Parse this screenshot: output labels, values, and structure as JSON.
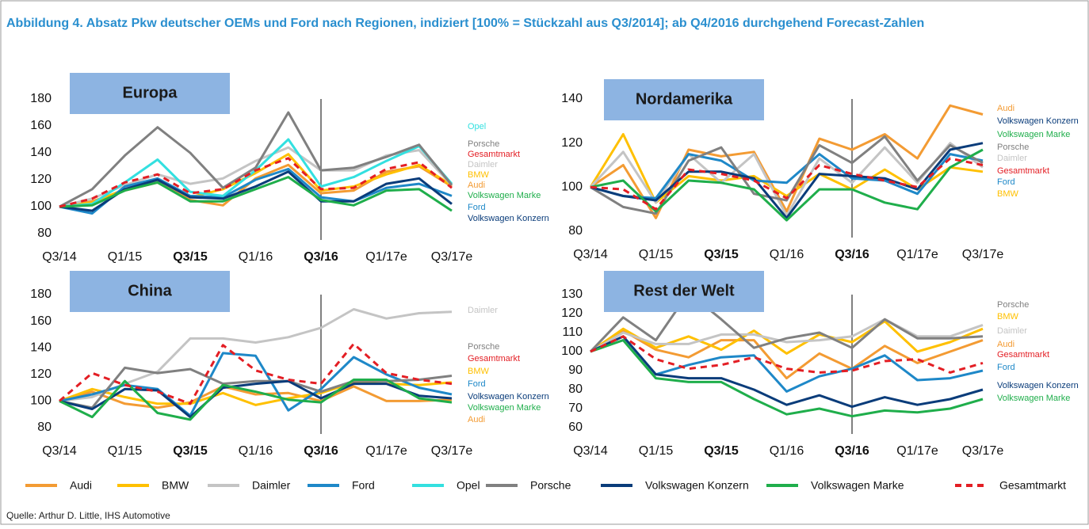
{
  "title": "Abbildung 4. Absatz Pkw deutscher OEMs und Ford nach Regionen, indiziert [100% = Stückzahl aus Q3/2014]; ab Q4/2016 durchgehend Forecast-Zahlen",
  "source": "Quelle: Arthur D. Little, IHS Automotive",
  "chart_data": [
    {
      "type": "line",
      "title": "Europa",
      "categories": [
        "Q3/14",
        null,
        "Q1/15",
        null,
        "Q3/15",
        null,
        "Q1/16",
        null,
        "Q3/16",
        null,
        "Q1/17e",
        null,
        "Q3/17e"
      ],
      "ylim": [
        80,
        180
      ],
      "yticks": [
        80,
        100,
        120,
        140,
        160,
        180
      ],
      "series": [
        {
          "name": "Audi",
          "color": "#f39b33",
          "values": [
            100,
            104,
            112,
            118,
            105,
            101,
            121,
            131,
            110,
            112,
            126,
            130,
            115
          ]
        },
        {
          "name": "BMW",
          "color": "#ffc000",
          "values": [
            100,
            103,
            113,
            120,
            107,
            113,
            125,
            139,
            112,
            115,
            124,
            131,
            116
          ]
        },
        {
          "name": "Daimler",
          "color": "#c4c4c4",
          "values": [
            100,
            106,
            116,
            124,
            117,
            121,
            134,
            144,
            127,
            127,
            138,
            142,
            116
          ]
        },
        {
          "name": "Ford",
          "color": "#1e88c8",
          "values": [
            100,
            95,
            115,
            121,
            108,
            107,
            120,
            128,
            107,
            104,
            114,
            117,
            108
          ]
        },
        {
          "name": "Opel",
          "color": "#33e0e0",
          "values": [
            100,
            102,
            118,
            135,
            111,
            108,
            127,
            150,
            115,
            122,
            134,
            145,
            117
          ]
        },
        {
          "name": "Porsche",
          "color": "#808080",
          "values": [
            100,
            113,
            138,
            159,
            140,
            114,
            129,
            170,
            127,
            129,
            137,
            146,
            116
          ]
        },
        {
          "name": "Volkswagen Konzern",
          "color": "#0a3c7a",
          "values": [
            100,
            97,
            113,
            120,
            107,
            106,
            115,
            126,
            104,
            104,
            117,
            121,
            102
          ]
        },
        {
          "name": "Volkswagen Marke",
          "color": "#1fae4b",
          "values": [
            100,
            101,
            112,
            118,
            104,
            104,
            113,
            122,
            105,
            101,
            112,
            113,
            97
          ]
        },
        {
          "name": "Gesamtmarkt",
          "color": "#e31e24",
          "dashed": true,
          "values": [
            100,
            106,
            118,
            124,
            110,
            113,
            127,
            136,
            113,
            114,
            128,
            133,
            114
          ]
        }
      ]
    },
    {
      "type": "line",
      "title": "Nordamerika",
      "categories": [
        "Q3/14",
        null,
        "Q1/15",
        null,
        "Q3/15",
        null,
        "Q1/16",
        null,
        "Q3/16",
        null,
        "Q1/17e",
        null,
        "Q3/17e"
      ],
      "ylim": [
        80,
        140
      ],
      "yticks": [
        80,
        100,
        120,
        140
      ],
      "series": [
        {
          "name": "Audi",
          "color": "#f39b33",
          "values": [
            100,
            110,
            86,
            117,
            114,
            116,
            89,
            122,
            117,
            124,
            113,
            137,
            133
          ]
        },
        {
          "name": "BMW",
          "color": "#ffc000",
          "values": [
            100,
            124,
            93,
            105,
            103,
            105,
            96,
            106,
            99,
            108,
            99,
            109,
            107
          ]
        },
        {
          "name": "Daimler",
          "color": "#c4c4c4",
          "values": [
            100,
            116,
            93,
            115,
            102,
            115,
            87,
            113,
            102,
            118,
            102,
            120,
            109
          ]
        },
        {
          "name": "Ford",
          "color": "#1e88c8",
          "values": [
            100,
            96,
            95,
            115,
            112,
            103,
            102,
            115,
            104,
            103,
            97,
            115,
            112
          ]
        },
        {
          "name": "Porsche",
          "color": "#808080",
          "values": [
            100,
            91,
            88,
            112,
            118,
            97,
            94,
            119,
            111,
            123,
            103,
            119,
            111
          ]
        },
        {
          "name": "Volkswagen Konzern",
          "color": "#0a3c7a",
          "values": [
            100,
            96,
            94,
            107,
            107,
            104,
            86,
            106,
            105,
            104,
            99,
            117,
            120
          ]
        },
        {
          "name": "Volkswagen Marke",
          "color": "#1fae4b",
          "values": [
            100,
            103,
            89,
            103,
            102,
            99,
            85,
            99,
            99,
            93,
            90,
            109,
            117
          ]
        },
        {
          "name": "Gesamtmarkt",
          "color": "#e31e24",
          "dashed": true,
          "values": [
            100,
            99,
            90,
            108,
            106,
            103,
            95,
            110,
            106,
            103,
            100,
            113,
            110
          ]
        }
      ]
    },
    {
      "type": "line",
      "title": "China",
      "categories": [
        "Q3/14",
        null,
        "Q1/15",
        null,
        "Q3/15",
        null,
        "Q1/16",
        null,
        "Q3/16",
        null,
        "Q1/17e",
        null,
        "Q3/17e"
      ],
      "ylim": [
        80,
        180
      ],
      "yticks": [
        80,
        100,
        120,
        140,
        160,
        180
      ],
      "series": [
        {
          "name": "Audi",
          "color": "#f39b33",
          "values": [
            100,
            107,
            98,
            95,
            99,
            111,
            105,
            106,
            100,
            111,
            100,
            100,
            101
          ]
        },
        {
          "name": "BMW",
          "color": "#ffc000",
          "values": [
            100,
            109,
            103,
            98,
            98,
            106,
            97,
            102,
            106,
            114,
            113,
            112,
            114
          ]
        },
        {
          "name": "Daimler",
          "color": "#c4c4c4",
          "values": [
            100,
            103,
            113,
            122,
            147,
            147,
            144,
            148,
            155,
            169,
            162,
            166,
            167
          ]
        },
        {
          "name": "Ford",
          "color": "#1e88c8",
          "values": [
            100,
            105,
            112,
            109,
            89,
            136,
            134,
            93,
            109,
            133,
            120,
            110,
            105
          ]
        },
        {
          "name": "Porsche",
          "color": "#808080",
          "values": [
            100,
            95,
            125,
            121,
            124,
            113,
            115,
            115,
            107,
            115,
            115,
            116,
            119
          ]
        },
        {
          "name": "Volkswagen Konzern",
          "color": "#0a3c7a",
          "values": [
            100,
            94,
            109,
            108,
            88,
            110,
            113,
            115,
            102,
            113,
            113,
            104,
            102
          ]
        },
        {
          "name": "Volkswagen Marke",
          "color": "#1fae4b",
          "values": [
            100,
            88,
            115,
            91,
            86,
            112,
            107,
            101,
            99,
            116,
            116,
            102,
            99
          ]
        },
        {
          "name": "Gesamtmarkt",
          "color": "#e31e24",
          "dashed": true,
          "values": [
            100,
            121,
            112,
            107,
            98,
            142,
            123,
            116,
            113,
            143,
            121,
            116,
            113
          ]
        }
      ]
    },
    {
      "type": "line",
      "title": "Rest der Welt",
      "categories": [
        "Q3/14",
        null,
        "Q1/15",
        null,
        "Q3/15",
        null,
        "Q1/16",
        null,
        "Q3/16",
        null,
        "Q1/17e",
        null,
        "Q3/17e"
      ],
      "ylim": [
        60,
        130
      ],
      "yticks": [
        60,
        70,
        80,
        90,
        100,
        110,
        120,
        130
      ],
      "series": [
        {
          "name": "Audi",
          "color": "#f39b33",
          "values": [
            100,
            111,
            101,
            97,
            106,
            106,
            86,
            99,
            91,
            103,
            94,
            100,
            106
          ]
        },
        {
          "name": "BMW",
          "color": "#ffc000",
          "values": [
            100,
            112,
            102,
            108,
            101,
            111,
            99,
            109,
            105,
            116,
            100,
            105,
            112
          ]
        },
        {
          "name": "Daimler",
          "color": "#c4c4c4",
          "values": [
            100,
            110,
            104,
            104,
            109,
            109,
            105,
            106,
            108,
            117,
            108,
            108,
            114
          ]
        },
        {
          "name": "Ford",
          "color": "#1e88c8",
          "values": [
            100,
            108,
            88,
            93,
            97,
            98,
            79,
            87,
            91,
            98,
            85,
            86,
            90
          ]
        },
        {
          "name": "Porsche",
          "color": "#808080",
          "values": [
            100,
            118,
            106,
            131,
            117,
            102,
            107,
            110,
            102,
            117,
            107,
            107,
            108
          ]
        },
        {
          "name": "Volkswagen Konzern",
          "color": "#0a3c7a",
          "values": [
            100,
            108,
            88,
            86,
            86,
            80,
            72,
            77,
            71,
            76,
            72,
            75,
            80
          ]
        },
        {
          "name": "Volkswagen Marke",
          "color": "#1fae4b",
          "values": [
            100,
            106,
            86,
            84,
            84,
            75,
            67,
            70,
            66,
            69,
            68,
            70,
            75
          ]
        },
        {
          "name": "Gesamtmarkt",
          "color": "#e31e24",
          "dashed": true,
          "values": [
            100,
            108,
            96,
            91,
            93,
            97,
            91,
            89,
            90,
            95,
            96,
            89,
            94
          ]
        }
      ]
    }
  ]
}
